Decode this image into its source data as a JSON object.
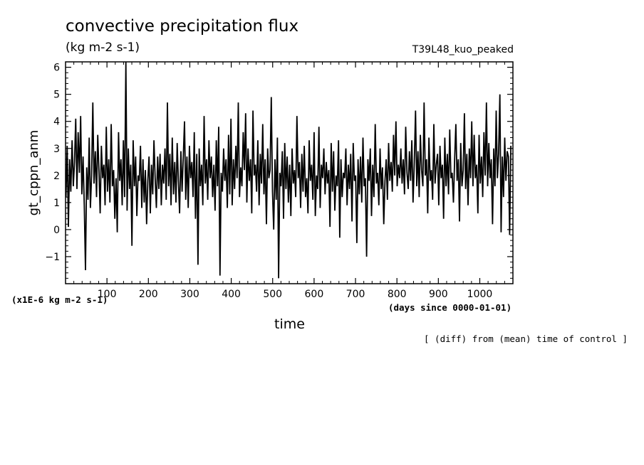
{
  "chart_data": {
    "type": "line",
    "title": "convective precipitation flux",
    "subtitle": "(kg m-2 s-1)",
    "run_label": "T39L48_kuo_peaked",
    "ylabel": "gt_cppn_anm",
    "xlabel": "time",
    "y_scale_note": "(x1E-6 kg m-2 s-1)",
    "x_units_note": "(days since 0000-01-01)",
    "footnote": "[ (diff) from (mean) time of control ]",
    "xlim": [
      0,
      1080
    ],
    "ylim": [
      -2,
      6.2
    ],
    "x_ticks": [
      100,
      200,
      300,
      400,
      500,
      600,
      700,
      800,
      900,
      1000
    ],
    "y_ticks": [
      -1,
      0,
      1,
      2,
      3,
      4,
      5,
      6
    ],
    "grid": false,
    "series": [
      {
        "values": [
          1.2,
          3.1,
          0.1,
          2.6,
          1.4,
          3.3,
          1.6,
          2.5,
          4.1,
          1.5,
          3.6,
          2.1,
          4.2,
          1.3,
          2.7,
          0.9,
          -1.5,
          2.3,
          1.1,
          3.4,
          0.8,
          2.0,
          4.7,
          1.7,
          2.9,
          1.2,
          3.5,
          2.2,
          0.6,
          3.1,
          1.9,
          2.4,
          0.9,
          3.8,
          1.4,
          2.6,
          1.0,
          3.9,
          1.6,
          2.2,
          0.4,
          1.9,
          -0.1,
          3.6,
          1.8,
          2.6,
          0.9,
          3.3,
          1.2,
          6.2,
          0.7,
          3.0,
          1.5,
          2.4,
          -0.6,
          3.3,
          1.6,
          2.7,
          0.5,
          2.0,
          1.8,
          3.1,
          0.8,
          2.6,
          1.0,
          2.2,
          0.2,
          1.8,
          2.7,
          0.6,
          2.4,
          1.3,
          3.3,
          1.9,
          0.8,
          2.7,
          1.5,
          2.8,
          0.9,
          2.4,
          1.7,
          3.0,
          1.1,
          4.7,
          1.6,
          2.8,
          0.9,
          3.4,
          1.3,
          2.5,
          1.0,
          3.2,
          1.8,
          0.6,
          2.9,
          1.4,
          2.7,
          4.0,
          1.1,
          2.7,
          0.8,
          3.1,
          1.9,
          2.5,
          1.2,
          3.6,
          0.4,
          2.8,
          -1.3,
          3.0,
          1.6,
          2.4,
          0.9,
          4.2,
          1.7,
          2.6,
          1.1,
          3.3,
          1.9,
          2.7,
          1.2,
          2.4,
          0.7,
          3.3,
          1.6,
          3.8,
          -1.7,
          2.1,
          1.4,
          3.0,
          1.8,
          2.6,
          0.8,
          3.5,
          1.3,
          4.1,
          0.9,
          2.6,
          1.5,
          3.1,
          1.9,
          4.7,
          1.2,
          2.3,
          1.6,
          3.6,
          2.2,
          4.3,
          1.0,
          3.0,
          1.8,
          2.6,
          0.6,
          4.4,
          2.0,
          2.4,
          1.4,
          3.3,
          0.9,
          2.8,
          1.7,
          3.9,
          1.3,
          2.6,
          0.2,
          3.0,
          1.9,
          2.2,
          4.9,
          1.4,
          0.0,
          2.6,
          1.1,
          3.4,
          -1.8,
          2.1,
          1.6,
          2.9,
          0.4,
          3.2,
          1.5,
          2.7,
          1.0,
          2.4,
          0.5,
          3.0,
          1.7,
          2.2,
          1.2,
          4.2,
          1.9,
          2.5,
          0.8,
          2.8,
          1.4,
          3.1,
          1.2,
          1.9,
          0.6,
          3.3,
          1.8,
          2.4,
          1.1,
          3.6,
          0.5,
          2.0,
          1.5,
          3.8,
          0.8,
          2.4,
          1.9,
          3.0,
          1.3,
          2.5,
          1.7,
          2.2,
          0.1,
          3.2,
          1.4,
          2.9,
          0.7,
          2.0,
          1.6,
          3.3,
          -0.3,
          2.6,
          1.2,
          2.1,
          1.9,
          3.0,
          0.9,
          2.4,
          1.5,
          2.8,
          0.3,
          3.2,
          1.8,
          2.0,
          -0.5,
          2.6,
          1.3,
          2.7,
          1.0,
          3.4,
          1.6,
          1.9,
          -1.0,
          2.6,
          1.8,
          3.0,
          0.5,
          2.4,
          1.2,
          3.9,
          1.7,
          2.1,
          0.9,
          3.0,
          1.5,
          2.3,
          0.2,
          1.8,
          2.6,
          1.1,
          3.2,
          1.8,
          2.5,
          1.4,
          3.5,
          2.0,
          4.0,
          1.6,
          2.4,
          1.9,
          3.0,
          1.7,
          2.6,
          1.3,
          3.8,
          2.1,
          1.5,
          2.9,
          1.8,
          3.3,
          1.0,
          2.5,
          4.4,
          1.6,
          2.9,
          1.2,
          3.5,
          2.2,
          1.6,
          4.7,
          2.0,
          2.6,
          0.6,
          3.4,
          1.8,
          2.2,
          1.1,
          3.9,
          1.7,
          2.4,
          2.8,
          0.9,
          3.1,
          1.9,
          2.4,
          0.4,
          3.4,
          1.6,
          2.8,
          1.3,
          3.7,
          1.9,
          2.1,
          1.0,
          2.6,
          3.9,
          1.8,
          2.6,
          0.3,
          3.2,
          1.6,
          2.2,
          4.3,
          1.5,
          2.8,
          0.9,
          3.0,
          1.9,
          4.0,
          1.6,
          3.5,
          1.9,
          2.4,
          0.6,
          3.5,
          1.7,
          2.7,
          1.2,
          3.6,
          2.0,
          4.7,
          1.6,
          3.2,
          1.9,
          2.6,
          0.2,
          3.0,
          1.6,
          4.4,
          1.9,
          2.8,
          5.0,
          -0.1,
          2.7,
          1.2,
          3.4,
          1.8,
          2.9,
          2.7,
          -0.2,
          3.1
        ]
      }
    ]
  }
}
